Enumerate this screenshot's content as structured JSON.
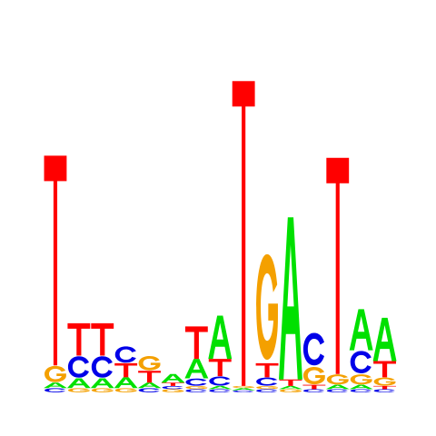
{
  "colors": {
    "A": "#00e000",
    "C": "#0000e8",
    "G": "#f4a000",
    "T": "#ff0000"
  },
  "columns": [
    [
      [
        "C",
        0.4
      ],
      [
        "A",
        0.5
      ],
      [
        "G",
        1.6
      ],
      [
        "T",
        19.4
      ]
    ],
    [
      [
        "G",
        0.4
      ],
      [
        "A",
        0.9
      ],
      [
        "C",
        2.1
      ],
      [
        "T",
        3.0
      ]
    ],
    [
      [
        "G",
        0.4
      ],
      [
        "A",
        0.9
      ],
      [
        "C",
        2.1
      ],
      [
        "T",
        3.0
      ]
    ],
    [
      [
        "G",
        0.4
      ],
      [
        "A",
        1.0
      ],
      [
        "T",
        1.3
      ],
      [
        "C",
        1.6
      ]
    ],
    [
      [
        "C",
        0.4
      ],
      [
        "A",
        0.5
      ],
      [
        "T",
        1.1
      ],
      [
        "G",
        1.4
      ]
    ],
    [
      [
        "G",
        0.3
      ],
      [
        "C",
        0.3
      ],
      [
        "T",
        0.3
      ],
      [
        "A",
        0.8
      ]
    ],
    [
      [
        "C",
        0.3
      ],
      [
        "G",
        0.3
      ],
      [
        "C",
        0.7
      ],
      [
        "A",
        1.8
      ],
      [
        "T",
        3.0
      ]
    ],
    [
      [
        "C",
        0.3
      ],
      [
        "A",
        0.3
      ],
      [
        "C",
        0.9
      ],
      [
        "T",
        1.6
      ],
      [
        "A",
        4.0
      ]
    ],
    [
      [
        "C",
        0.2
      ],
      [
        "A",
        0.2
      ],
      [
        "G",
        0.2
      ],
      [
        "T",
        28.2
      ]
    ],
    [
      [
        "C",
        0.3
      ],
      [
        "G",
        0.3
      ],
      [
        "C",
        0.8
      ],
      [
        "T",
        1.3
      ],
      [
        "G",
        10.4
      ]
    ],
    [
      [
        "G",
        0.3
      ],
      [
        "A",
        0.3
      ],
      [
        "T",
        0.6
      ],
      [
        "A",
        15.0
      ]
    ],
    [
      [
        "C",
        0.3
      ],
      [
        "T",
        0.4
      ],
      [
        "G",
        1.7
      ],
      [
        "C",
        3.2
      ]
    ],
    [
      [
        "C",
        0.3
      ],
      [
        "A",
        0.4
      ],
      [
        "G",
        1.0
      ],
      [
        "T",
        20.0
      ]
    ],
    [
      [
        "C",
        0.3
      ],
      [
        "A",
        0.4
      ],
      [
        "G",
        1.0
      ],
      [
        "C",
        2.2
      ],
      [
        "A",
        3.8
      ]
    ],
    [
      [
        "C",
        0.3
      ],
      [
        "T",
        0.3
      ],
      [
        "G",
        0.8
      ],
      [
        "T",
        1.5
      ],
      [
        "A",
        4.0
      ]
    ]
  ]
}
